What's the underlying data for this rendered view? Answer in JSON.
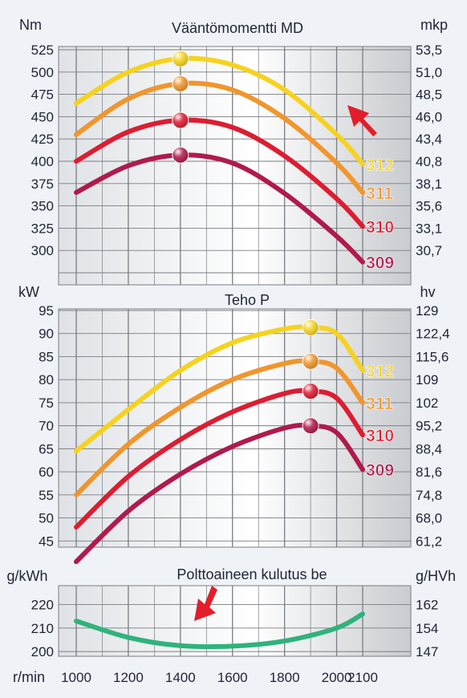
{
  "colors": {
    "series_312": "#f6d21f",
    "series_311": "#f0962c",
    "series_310": "#dc1d32",
    "series_309": "#b01a4c",
    "fuel": "#2fb37c",
    "arrow": "#e41d2a",
    "grid": "#7a7d82"
  },
  "x_axis": {
    "label": "r/min",
    "ticks": [
      "1000",
      "1200",
      "1400",
      "1600",
      "1800",
      "2000",
      "2100"
    ],
    "range": [
      1000,
      2100
    ]
  },
  "chart_data": [
    {
      "type": "line",
      "title": "Vääntömomentti MD",
      "ylabel": "Nm",
      "ylabel_right": "mkp",
      "ylim": [
        275,
        525
      ],
      "yticks": [
        "525",
        "500",
        "475",
        "450",
        "425",
        "400",
        "375",
        "350",
        "325",
        "300"
      ],
      "yticks_right": [
        "53,5",
        "51,0",
        "48,5",
        "46,0",
        "43,4",
        "40,8",
        "38,1",
        "35,6",
        "33,1",
        "30,7"
      ],
      "x": [
        1000,
        1200,
        1400,
        1600,
        1800,
        2000,
        2100
      ],
      "peak_markers_at": 1400,
      "annotation": "arrow pointing up-left",
      "series": [
        {
          "name": "312",
          "color_key": "series_312",
          "values": [
            465,
            500,
            515,
            508,
            480,
            430,
            397
          ]
        },
        {
          "name": "311",
          "color_key": "series_311",
          "values": [
            430,
            470,
            487,
            480,
            448,
            398,
            365
          ]
        },
        {
          "name": "310",
          "color_key": "series_310",
          "values": [
            400,
            433,
            446,
            438,
            406,
            358,
            327
          ]
        },
        {
          "name": "309",
          "color_key": "series_309",
          "values": [
            365,
            395,
            407,
            398,
            364,
            316,
            287
          ]
        }
      ]
    },
    {
      "type": "line",
      "title": "Teho P",
      "ylabel": "kW",
      "ylabel_right": "hv",
      "ylim": [
        40,
        95
      ],
      "yticks": [
        "95",
        "90",
        "85",
        "80",
        "75",
        "70",
        "65",
        "60",
        "55",
        "50",
        "45"
      ],
      "yticks_right": [
        "129",
        "122,4",
        "115,6",
        "109",
        "102",
        "95,2",
        "88,4",
        "81,6",
        "74,8",
        "68,0",
        "61,2"
      ],
      "x": [
        1000,
        1200,
        1400,
        1600,
        1800,
        1900,
        2000,
        2100
      ],
      "peak_markers_at": 1900,
      "series": [
        {
          "name": "312",
          "color_key": "series_312",
          "values": [
            64.5,
            73.5,
            82,
            88,
            91,
            91.3,
            90,
            82
          ]
        },
        {
          "name": "311",
          "color_key": "series_311",
          "values": [
            55,
            66,
            74,
            80,
            83.5,
            84,
            82.5,
            75
          ]
        },
        {
          "name": "310",
          "color_key": "series_310",
          "values": [
            48,
            59,
            67,
            73,
            77,
            77.5,
            76,
            68
          ]
        },
        {
          "name": "309",
          "color_key": "series_309",
          "values": [
            40.5,
            51.5,
            59.5,
            65.5,
            69.5,
            70,
            68.5,
            60.5
          ]
        }
      ]
    },
    {
      "type": "line",
      "title": "Polttoaineen kulutus be",
      "ylabel": "g/kWh",
      "ylabel_right": "g/HVh",
      "ylim": [
        198,
        228
      ],
      "yticks": [
        "220",
        "210",
        "200"
      ],
      "yticks_right": [
        "162",
        "154",
        "147"
      ],
      "x": [
        1000,
        1200,
        1400,
        1600,
        1800,
        2000,
        2100
      ],
      "annotation": "arrow pointing down-left",
      "series": [
        {
          "color_key": "fuel",
          "values": [
            213,
            206,
            202.5,
            202.3,
            204.5,
            210,
            216
          ]
        }
      ]
    }
  ]
}
